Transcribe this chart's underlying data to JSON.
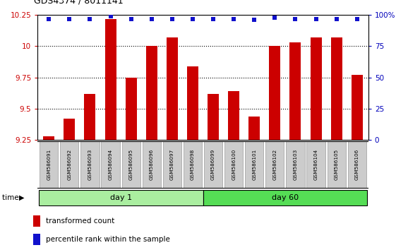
{
  "title": "GDS4374 / 8011141",
  "samples": [
    "GSM586091",
    "GSM586092",
    "GSM586093",
    "GSM586094",
    "GSM586095",
    "GSM586096",
    "GSM586097",
    "GSM586098",
    "GSM586099",
    "GSM586100",
    "GSM586101",
    "GSM586102",
    "GSM586103",
    "GSM586104",
    "GSM586105",
    "GSM586106"
  ],
  "bar_values": [
    9.28,
    9.42,
    9.62,
    10.22,
    9.75,
    10.0,
    10.07,
    9.84,
    9.62,
    9.64,
    9.44,
    10.0,
    10.03,
    10.07,
    10.07,
    9.77
  ],
  "percentile_values": [
    97,
    97,
    97,
    99,
    97,
    97,
    97,
    97,
    97,
    97,
    96,
    98,
    97,
    97,
    97,
    97
  ],
  "day1_count": 8,
  "day60_count": 8,
  "ylim_left": [
    9.25,
    10.25
  ],
  "ylim_right": [
    0,
    100
  ],
  "bar_color": "#cc0000",
  "dot_color": "#1111cc",
  "day1_color": "#aaeea0",
  "day60_color": "#55dd55",
  "background_color": "#ffffff",
  "label_bg_color": "#cccccc",
  "left_tick_color": "#cc0000",
  "right_tick_color": "#0000bb",
  "right_yticks": [
    0,
    25,
    50,
    75,
    100
  ],
  "right_yticklabels": [
    "0",
    "25",
    "50",
    "75",
    "100%"
  ],
  "left_yticks": [
    9.25,
    9.5,
    9.75,
    10.0,
    10.25
  ],
  "left_yticklabels": [
    "9.25",
    "9.5",
    "9.75",
    "10",
    "10.25"
  ]
}
